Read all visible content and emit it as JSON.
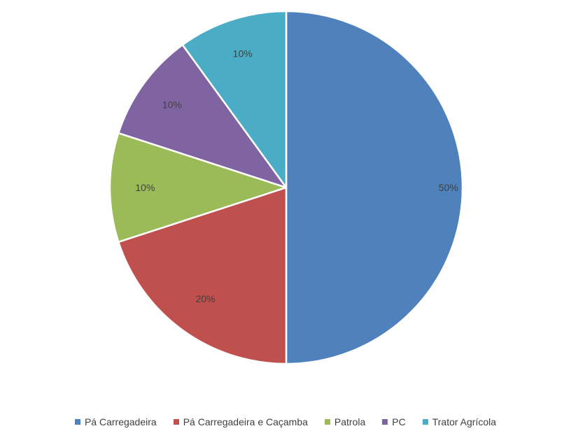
{
  "chart_data": {
    "type": "pie",
    "title": "",
    "categories": [
      "Pá Carregadeira",
      "Pá Carregadeira e Caçamba",
      "Patrola",
      "PC",
      "Trator Agrícola"
    ],
    "values": [
      50,
      20,
      10,
      10,
      10
    ],
    "data_labels": [
      "50%",
      "20%",
      "10%",
      "10%",
      "10%"
    ],
    "colors": [
      "#4F81BD",
      "#C0504D",
      "#9BBB59",
      "#8064A2",
      "#4BACC6"
    ],
    "legend_position": "bottom",
    "start_angle": "top",
    "direction": "clockwise"
  }
}
